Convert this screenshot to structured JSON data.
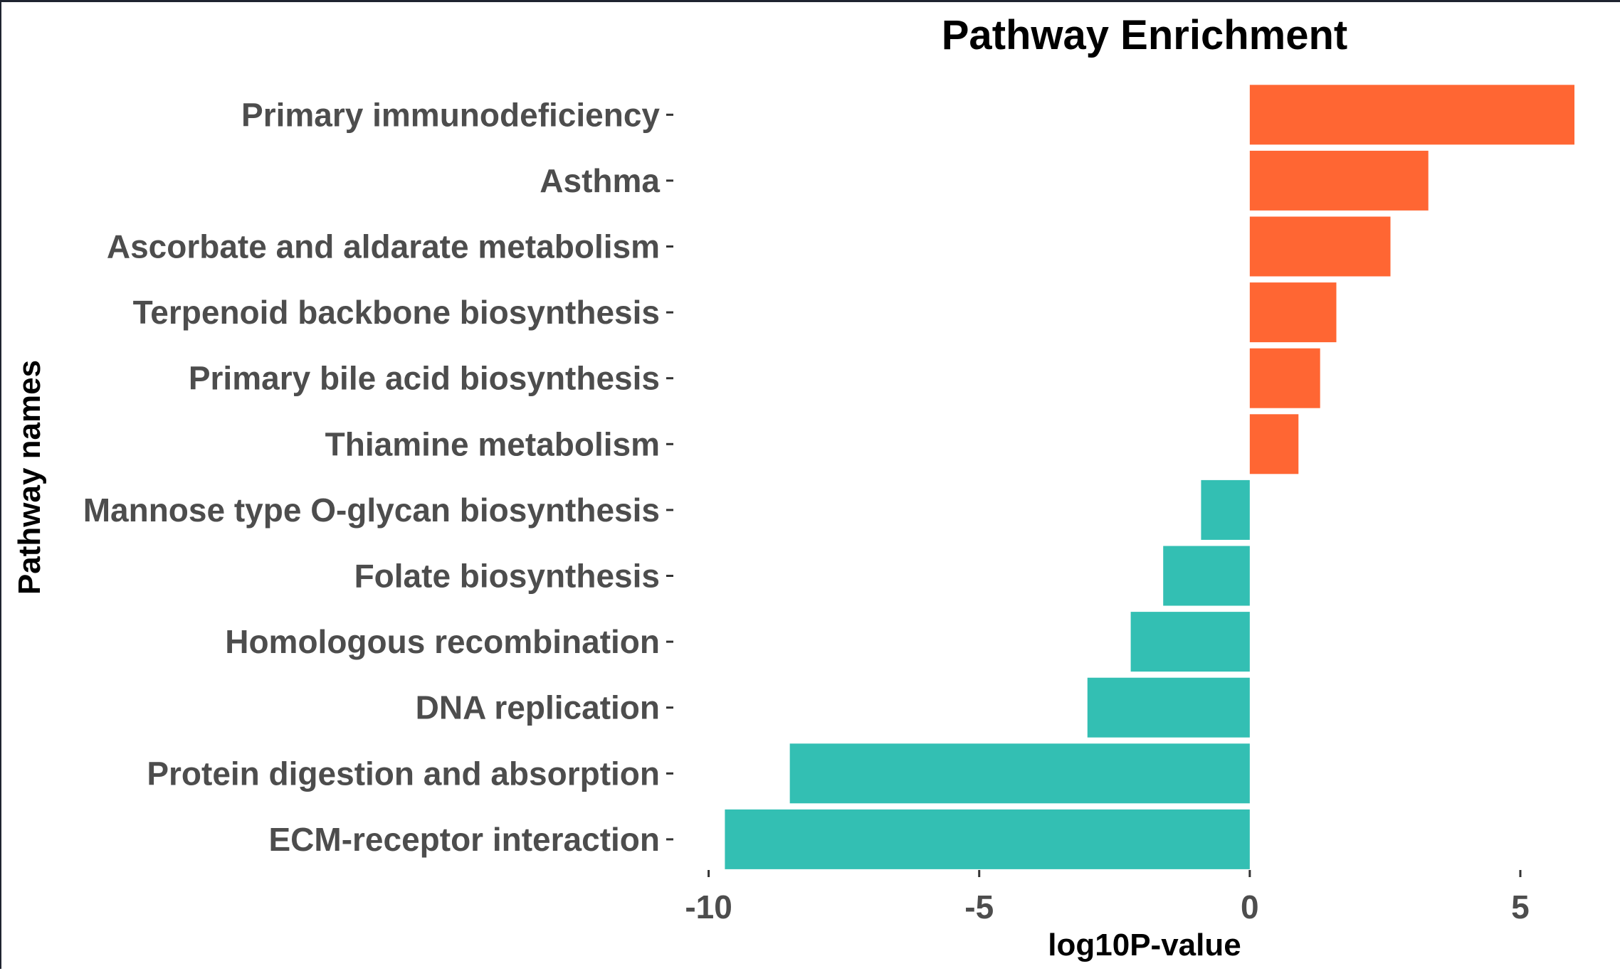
{
  "chart_data": {
    "type": "bar",
    "orientation": "horizontal",
    "title": "Pathway Enrichment",
    "xlabel": "log10P-value",
    "ylabel": "Pathway names",
    "xlim": [
      -10.1,
      6.0
    ],
    "x_ticks": [
      -10,
      -5,
      0,
      5
    ],
    "x_tick_labels": [
      "-10",
      "-5",
      "0",
      "5"
    ],
    "grid": false,
    "legend": "none",
    "colors": {
      "positive": "#FF6633",
      "negative": "#33BFB3"
    },
    "categories": [
      "Primary immunodeficiency",
      "Asthma",
      "Ascorbate and aldarate metabolism",
      "Terpenoid backbone biosynthesis",
      "Primary bile acid biosynthesis",
      "Thiamine metabolism",
      "Mannose type O-glycan biosynthesis",
      "Folate biosynthesis",
      "Homologous recombination",
      "DNA replication",
      "Protein digestion and absorption",
      "ECM-receptor interaction"
    ],
    "values": [
      6.0,
      3.3,
      2.6,
      1.6,
      1.3,
      0.9,
      -0.9,
      -1.6,
      -2.2,
      -3.0,
      -8.5,
      -9.7
    ]
  }
}
